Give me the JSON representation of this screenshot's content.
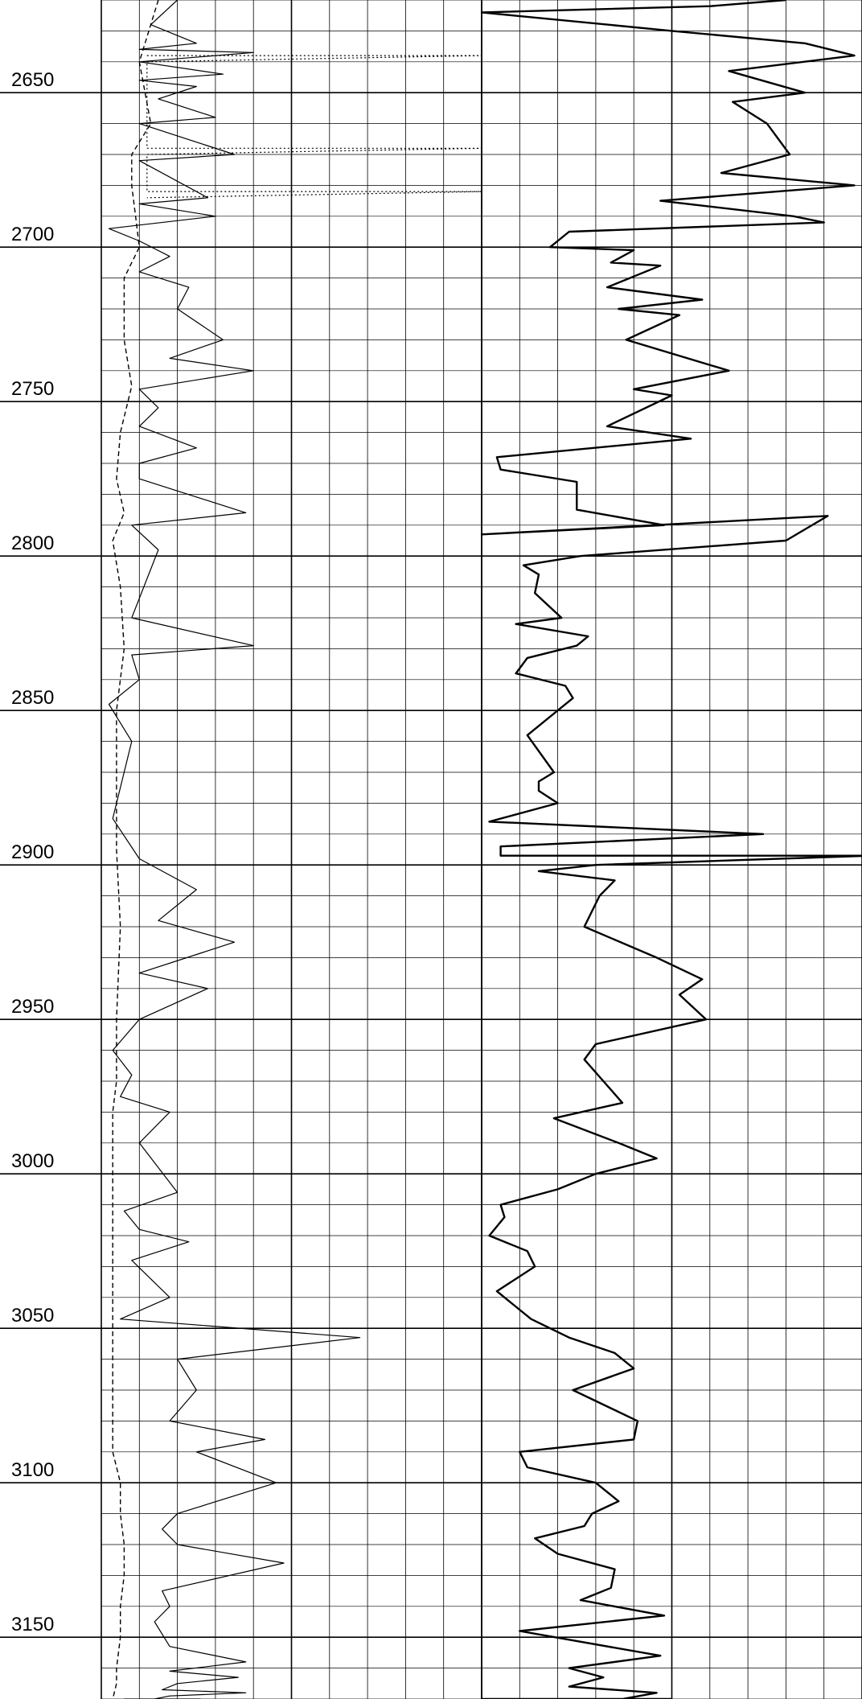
{
  "chart_data": {
    "type": "line",
    "title": "",
    "xlabel": "",
    "ylabel": "",
    "y_axis": {
      "orientation": "depth increasing downward",
      "range": [
        2620,
        3170
      ],
      "major_ticks": [
        2650,
        2700,
        2750,
        2800,
        2850,
        2900,
        2950,
        3000,
        3050,
        3100,
        3150
      ],
      "minor_tick_step": 10,
      "tick_labels": [
        "2650",
        "2700",
        "2750",
        "2800",
        "2850",
        "2900",
        "2950",
        "3000",
        "3050",
        "3100",
        "3150"
      ]
    },
    "tracks": [
      {
        "id": "track-left",
        "grid": "linear",
        "x_range": [
          0,
          10
        ],
        "grid_divisions": 10,
        "series": [
          {
            "style": "dashed",
            "x": [
              1.5,
              1.0,
              1.3,
              0.8,
              0.8,
              0.9,
              1.0,
              0.6,
              0.6,
              0.8,
              0.5,
              0.4,
              0.6,
              0.3,
              0.5,
              0.6,
              0.4,
              0.4,
              0.4,
              0.5,
              0.4,
              0.4,
              0.3,
              0.3,
              0.3,
              0.3,
              0.3,
              0.3,
              0.3,
              0.5,
              0.5,
              0.6,
              0.6,
              0.5,
              0.5,
              0.4,
              0.4,
              0.3,
              0.3
            ],
            "y": [
              2620,
              2640,
              2660,
              2670,
              2680,
              2690,
              2700,
              2710,
              2730,
              2745,
              2760,
              2775,
              2786,
              2795,
              2810,
              2830,
              2850,
              2870,
              2895,
              2920,
              2950,
              2970,
              2980,
              3000,
              3020,
              3040,
              3050,
              3070,
              3090,
              3100,
              3110,
              3120,
              3130,
              3140,
              3150,
              3160,
              3165,
              3170,
              3170
            ]
          },
          {
            "style": "solid-thin",
            "x": [
              2.0,
              1.3,
              2.5,
              1.0,
              4.0,
              1.0,
              3.2,
              1.0,
              2.5,
              1.5,
              3.0,
              1.0,
              3.5,
              1.0,
              2.8,
              1.0,
              3.0,
              0.2,
              1.0,
              1.8,
              1.0,
              2.3,
              2.0,
              3.2,
              1.8,
              4.0,
              1.0,
              1.5,
              1.0,
              2.5,
              1.0,
              1.0,
              3.8,
              0.8,
              1.5,
              0.8,
              4.0,
              0.8,
              1.0,
              0.2,
              0.8,
              0.3,
              1.0,
              2.5,
              1.5,
              3.5,
              1.0,
              2.8,
              1.0,
              0.3,
              0.8,
              0.5,
              1.8,
              1.0,
              2.0,
              0.6,
              1.0,
              2.3,
              0.8,
              1.8,
              0.5,
              6.8,
              2.0,
              2.5,
              1.8,
              4.3,
              2.5,
              4.6,
              2.0,
              1.6,
              2.0,
              4.8,
              1.6,
              1.8,
              1.4,
              1.8,
              3.8,
              1.8,
              3.6,
              2.0,
              1.6,
              3.8,
              1.8,
              1.4,
              1.8,
              2.6,
              1.0,
              1.6,
              0.6
            ],
            "y": [
              2620,
              2628,
              2634,
              2636,
              2637,
              2640,
              2644,
              2646,
              2648,
              2652,
              2658,
              2660,
              2670,
              2672,
              2684,
              2686,
              2690,
              2694,
              2698,
              2703,
              2708,
              2713,
              2720,
              2730,
              2736,
              2740,
              2746,
              2752,
              2758,
              2765,
              2770,
              2775,
              2786,
              2790,
              2798,
              2820,
              2829,
              2832,
              2840,
              2848,
              2860,
              2885,
              2898,
              2908,
              2918,
              2925,
              2935,
              2940,
              2950,
              2960,
              2968,
              2975,
              2980,
              2990,
              3006,
              3012,
              3018,
              3022,
              3028,
              3040,
              3047,
              3053,
              3060,
              3070,
              3080,
              3086,
              3090,
              3100,
              3110,
              3115,
              3120,
              3126,
              3135,
              3140,
              3145,
              3153,
              3158,
              3161,
              3163,
              3165,
              3167,
              3168,
              3169,
              3170,
              3170,
              3170,
              3170,
              3170,
              3170
            ]
          },
          {
            "style": "dotted",
            "x": [
              1.2,
              10.0,
              1.2,
              1.2,
              10.0,
              1.2,
              1.2,
              10.0,
              1.2
            ],
            "y": [
              2638,
              2638,
              2640,
              2668,
              2668,
              2670,
              2682,
              2682,
              2684
            ]
          }
        ]
      },
      {
        "id": "track-right",
        "grid": "linear",
        "x_range": [
          0,
          10
        ],
        "grid_divisions": 10,
        "series": [
          {
            "style": "solid-thick",
            "x": [
              8.0,
              6.0,
              0.0,
              5.0,
              8.5,
              9.8,
              6.5,
              8.5,
              6.6,
              7.5,
              8.1,
              6.3,
              9.8,
              4.7,
              8.2,
              9.0,
              2.3,
              1.8,
              4.0,
              3.4,
              4.7,
              3.3,
              5.8,
              3.6,
              5.2,
              3.8,
              6.5,
              4.0,
              5.0,
              3.3,
              5.5,
              0.4,
              0.5,
              2.5,
              2.5,
              4.8,
              0.0,
              9.1,
              8.0,
              2.6,
              1.1,
              1.5,
              1.4,
              2.1,
              0.9,
              2.8,
              2.5,
              1.2,
              0.9,
              2.2,
              2.4,
              1.2,
              1.9,
              1.5,
              1.5,
              2.0,
              0.2,
              7.4,
              0.5,
              0.5,
              10.2,
              3.0,
              1.5,
              3.5,
              3.1,
              2.7,
              4.6,
              5.8,
              5.2,
              5.9,
              3.0,
              2.7,
              3.2,
              3.7,
              1.9,
              3.6,
              4.6,
              3.0,
              2.0,
              0.5,
              0.6,
              0.2,
              1.2,
              1.4,
              0.4,
              1.3,
              2.3,
              3.5,
              4.0,
              2.4,
              4.1,
              4.0,
              1.0,
              1.2,
              3.0,
              3.6,
              2.9,
              2.7,
              1.4,
              2.0,
              3.5,
              3.4,
              2.6,
              4.8,
              1.0,
              4.7,
              2.3,
              3.2,
              2.3,
              4.6,
              3.7,
              2.2,
              0.0,
              1.5,
              0.2,
              5.0
            ],
            "y": [
              2620,
              2622,
              2624,
              2630,
              2634,
              2638,
              2643,
              2650,
              2653,
              2660,
              2670,
              2676,
              2680,
              2685,
              2690,
              2692,
              2695,
              2700,
              2701,
              2705,
              2706,
              2713,
              2717,
              2720,
              2722,
              2730,
              2740,
              2746,
              2748,
              2758,
              2762,
              2768,
              2772,
              2776,
              2785,
              2790,
              2793,
              2787,
              2795,
              2800,
              2803,
              2806,
              2812,
              2820,
              2822,
              2826,
              2829,
              2833,
              2838,
              2842,
              2846,
              2858,
              2870,
              2873,
              2876,
              2880,
              2886,
              2890,
              2894,
              2897,
              2897,
              2900,
              2902,
              2905,
              2910,
              2920,
              2930,
              2937,
              2942,
              2950,
              2958,
              2963,
              2970,
              2977,
              2982,
              2990,
              2995,
              3000,
              3005,
              3010,
              3014,
              3020,
              3025,
              3030,
              3038,
              3047,
              3053,
              3058,
              3063,
              3070,
              3080,
              3086,
              3090,
              3095,
              3100,
              3106,
              3110,
              3114,
              3118,
              3123,
              3128,
              3134,
              3138,
              3143,
              3148,
              3156,
              3160,
              3163,
              3166,
              3168,
              3170,
              3170,
              3170,
              3170,
              3170,
              3170
            ]
          }
        ]
      }
    ],
    "grid": true,
    "legend": "none"
  }
}
